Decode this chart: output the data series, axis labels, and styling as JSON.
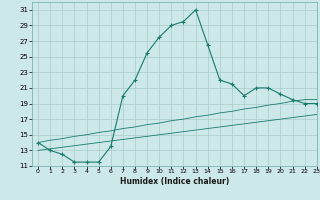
{
  "xlabel": "Humidex (Indice chaleur)",
  "bg_color": "#cce8e8",
  "grid_color": "#aacccc",
  "line_color": "#1a7a6e",
  "xlim": [
    -0.5,
    23
  ],
  "ylim": [
    11,
    32
  ],
  "xticks": [
    0,
    1,
    2,
    3,
    4,
    5,
    6,
    7,
    8,
    9,
    10,
    11,
    12,
    13,
    14,
    15,
    16,
    17,
    18,
    19,
    20,
    21,
    22,
    23
  ],
  "yticks": [
    11,
    13,
    15,
    17,
    19,
    21,
    23,
    25,
    27,
    29,
    31
  ],
  "lines": [
    {
      "x": [
        0,
        1,
        2,
        3,
        4,
        5,
        6,
        7,
        8,
        9,
        10,
        11,
        12,
        13,
        14,
        15,
        16,
        17,
        18,
        19,
        20,
        21,
        22,
        23
      ],
      "y": [
        14,
        13,
        12.5,
        11.5,
        11.5,
        11.5,
        13.5,
        20,
        22,
        25.5,
        27.5,
        29,
        29.5,
        31,
        26.5,
        22,
        21.5,
        20,
        21,
        21,
        20.2,
        19.5,
        19,
        19
      ]
    },
    {
      "x": [
        0,
        1,
        2,
        3,
        4,
        5,
        6,
        7,
        8,
        9,
        10,
        11,
        12,
        13,
        14,
        15,
        16,
        17,
        18,
        19,
        20,
        21,
        22,
        23
      ],
      "y": [
        14.0,
        14.3,
        14.5,
        14.8,
        15.0,
        15.3,
        15.5,
        15.8,
        16.0,
        16.3,
        16.5,
        16.8,
        17.0,
        17.3,
        17.5,
        17.8,
        18.0,
        18.3,
        18.5,
        18.8,
        19.0,
        19.3,
        19.5,
        19.5
      ]
    },
    {
      "x": [
        0,
        1,
        2,
        3,
        4,
        5,
        6,
        7,
        8,
        9,
        10,
        11,
        12,
        13,
        14,
        15,
        16,
        17,
        18,
        19,
        20,
        21,
        22,
        23
      ],
      "y": [
        13.0,
        13.2,
        13.4,
        13.6,
        13.8,
        14.0,
        14.2,
        14.4,
        14.6,
        14.8,
        15.0,
        15.2,
        15.4,
        15.6,
        15.8,
        16.0,
        16.2,
        16.4,
        16.6,
        16.8,
        17.0,
        17.2,
        17.4,
        17.6
      ]
    }
  ]
}
